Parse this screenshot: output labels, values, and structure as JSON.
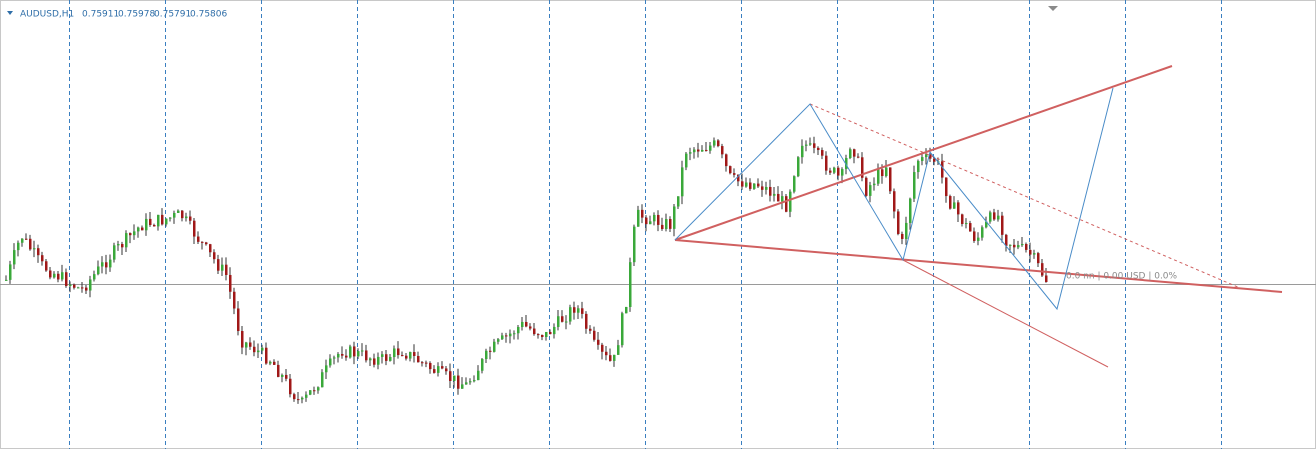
{
  "header": {
    "symbol": "AUDUSD,H1",
    "open": "0.75911",
    "high": "0.75978",
    "low": "0.75791",
    "close": "0.75806"
  },
  "crosshair_label": "0.0 nn | 0.00 USD | 0.0%"
}
